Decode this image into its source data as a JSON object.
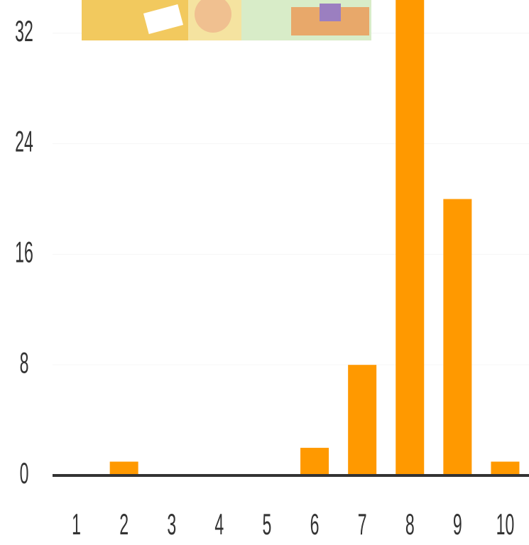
{
  "chart_data": {
    "type": "bar",
    "categories": [
      "1",
      "2",
      "3",
      "4",
      "5",
      "6",
      "7",
      "8",
      "9",
      "10"
    ],
    "values": [
      0,
      1,
      0,
      0,
      0,
      2,
      8,
      36,
      20,
      1
    ],
    "color": "#ff9900",
    "ylim": [
      0,
      34.4
    ],
    "yticks": [
      0,
      8,
      16,
      24,
      32
    ],
    "grid": true
  }
}
